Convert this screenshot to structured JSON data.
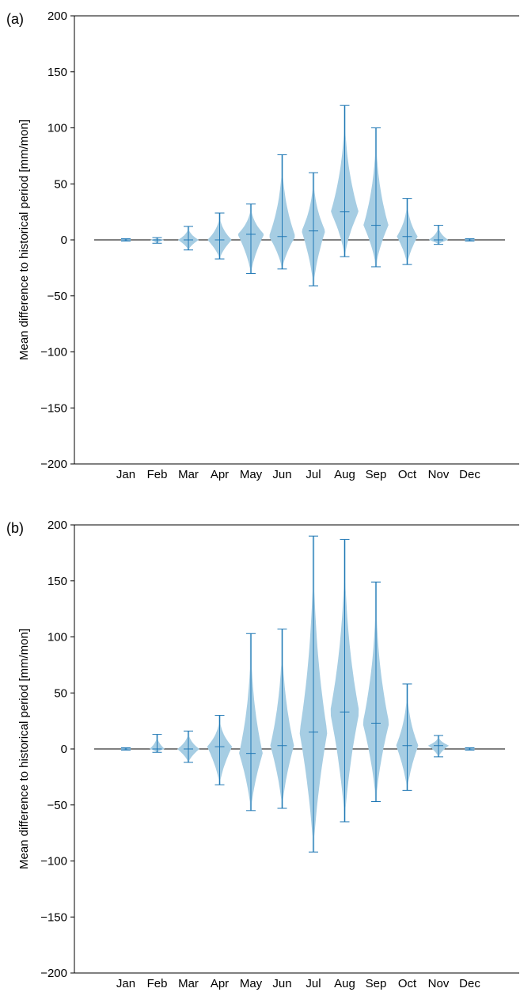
{
  "colors": {
    "violin_fill": "#a6cde3",
    "violin_line": "#1f77b4",
    "zero_line": "#000000",
    "axis": "#000000"
  },
  "chart_data": [
    {
      "type": "violin",
      "panel_label": "(a)",
      "ylabel": "Mean difference to historical period [mm/mon]",
      "ylim": [
        -200,
        200
      ],
      "yticks": [
        200,
        150,
        100,
        50,
        0,
        -50,
        -100,
        -150,
        -200
      ],
      "ytick_labels": [
        "200",
        "150",
        "100",
        "50",
        "0",
        "−50",
        "−100",
        "−150",
        "−200"
      ],
      "categories": [
        "Jan",
        "Feb",
        "Mar",
        "Apr",
        "May",
        "Jun",
        "Jul",
        "Aug",
        "Sep",
        "Oct",
        "Nov",
        "Dec"
      ],
      "hline_y": 0,
      "violins": [
        {
          "month": "Jan",
          "min": -1,
          "max": 1,
          "median": 0,
          "peak_width": 0.15
        },
        {
          "month": "Feb",
          "min": -3,
          "max": 2,
          "median": 0,
          "peak_width": 0.2
        },
        {
          "month": "Mar",
          "min": -9,
          "max": 12,
          "median": 0,
          "peak_width": 0.3
        },
        {
          "month": "Apr",
          "min": -17,
          "max": 24,
          "median": 0,
          "peak_width": 0.35
        },
        {
          "month": "May",
          "min": -30,
          "max": 32,
          "median": 5,
          "peak_width": 0.38
        },
        {
          "month": "Jun",
          "min": -26,
          "max": 76,
          "median": 3,
          "peak_width": 0.38
        },
        {
          "month": "Jul",
          "min": -41,
          "max": 60,
          "median": 8,
          "peak_width": 0.34
        },
        {
          "month": "Aug",
          "min": -15,
          "max": 120,
          "median": 25,
          "peak_width": 0.4
        },
        {
          "month": "Sep",
          "min": -24,
          "max": 100,
          "median": 13,
          "peak_width": 0.36
        },
        {
          "month": "Oct",
          "min": -22,
          "max": 37,
          "median": 3,
          "peak_width": 0.3
        },
        {
          "month": "Nov",
          "min": -4,
          "max": 13,
          "median": 0,
          "peak_width": 0.28
        },
        {
          "month": "Dec",
          "min": -1,
          "max": 1,
          "median": 0,
          "peak_width": 0.15
        }
      ]
    },
    {
      "type": "violin",
      "panel_label": "(b)",
      "ylabel": "Mean difference to historical period [mm/mon]",
      "ylim": [
        -200,
        200
      ],
      "yticks": [
        200,
        150,
        100,
        50,
        0,
        -50,
        -100,
        -150,
        -200
      ],
      "ytick_labels": [
        "200",
        "150",
        "100",
        "50",
        "0",
        "−50",
        "−100",
        "−150",
        "−200"
      ],
      "categories": [
        "Jan",
        "Feb",
        "Mar",
        "Apr",
        "May",
        "Jun",
        "Jul",
        "Aug",
        "Sep",
        "Oct",
        "Nov",
        "Dec"
      ],
      "hline_y": 0,
      "violins": [
        {
          "month": "Jan",
          "min": -1,
          "max": 1,
          "median": 0,
          "peak_width": 0.15
        },
        {
          "month": "Feb",
          "min": -3,
          "max": 13,
          "median": 0,
          "peak_width": 0.22
        },
        {
          "month": "Mar",
          "min": -12,
          "max": 16,
          "median": 0,
          "peak_width": 0.32
        },
        {
          "month": "Apr",
          "min": -32,
          "max": 30,
          "median": 2,
          "peak_width": 0.36
        },
        {
          "month": "May",
          "min": -55,
          "max": 103,
          "median": -4,
          "peak_width": 0.34
        },
        {
          "month": "Jun",
          "min": -53,
          "max": 107,
          "median": 3,
          "peak_width": 0.34
        },
        {
          "month": "Jul",
          "min": -92,
          "max": 190,
          "median": 15,
          "peak_width": 0.4
        },
        {
          "month": "Aug",
          "min": -65,
          "max": 187,
          "median": 33,
          "peak_width": 0.42
        },
        {
          "month": "Sep",
          "min": -47,
          "max": 149,
          "median": 23,
          "peak_width": 0.38
        },
        {
          "month": "Oct",
          "min": -37,
          "max": 58,
          "median": 3,
          "peak_width": 0.32
        },
        {
          "month": "Nov",
          "min": -7,
          "max": 12,
          "median": 3,
          "peak_width": 0.3
        },
        {
          "month": "Dec",
          "min": -1,
          "max": 1,
          "median": 0,
          "peak_width": 0.15
        }
      ]
    }
  ]
}
